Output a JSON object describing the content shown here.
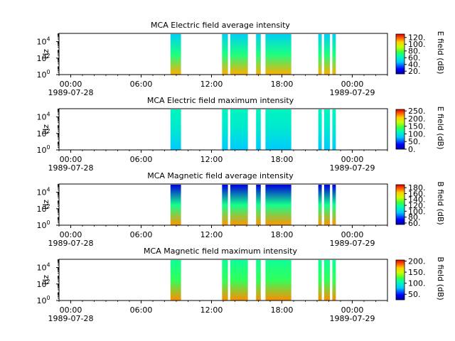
{
  "figure": {
    "time_axis": {
      "ticks": [
        {
          "time": "00:00",
          "date": "1989-07-28",
          "hour": 0
        },
        {
          "time": "06:00",
          "date": "",
          "hour": 6
        },
        {
          "time": "12:00",
          "date": "",
          "hour": 12
        },
        {
          "time": "18:00",
          "date": "",
          "hour": 18
        },
        {
          "time": "00:00",
          "date": "1989-07-29",
          "hour": 24
        }
      ],
      "range_hours": [
        -1,
        27
      ]
    },
    "segments_hours": [
      [
        8.5,
        9.4
      ],
      [
        12.9,
        13.4
      ],
      [
        13.6,
        15.1
      ],
      [
        15.8,
        16.2
      ],
      [
        16.6,
        18.8
      ],
      [
        21.1,
        21.4
      ],
      [
        21.6,
        22.1
      ],
      [
        22.3,
        22.6
      ]
    ]
  },
  "chart_data": [
    {
      "type": "heatmap",
      "title": "MCA  Electric field average intensity",
      "ylabel": "Hz",
      "yscale": "log",
      "yticks": [
        {
          "exp": 0,
          "label": "10",
          "sup": "0"
        },
        {
          "exp": 2,
          "label": "10",
          "sup": "2"
        },
        {
          "exp": 4,
          "label": "10",
          "sup": "4"
        }
      ],
      "colorbar": {
        "label": "E field (dB)",
        "range": [
          12,
          130
        ],
        "ticks": [
          20,
          40,
          60,
          80,
          100,
          120
        ],
        "tick_labels": [
          "20.",
          "40.",
          "60.",
          "80.",
          "100.",
          "120."
        ]
      },
      "typical_values_db": {
        "low_freq": 110,
        "mid_freq": 70,
        "high_freq": 50
      }
    },
    {
      "type": "heatmap",
      "title": "MCA  Electric field maximum intensity",
      "ylabel": "Hz",
      "yscale": "log",
      "yticks": [
        {
          "exp": 0,
          "label": "10",
          "sup": "0"
        },
        {
          "exp": 2,
          "label": "10",
          "sup": "2"
        },
        {
          "exp": 4,
          "label": "10",
          "sup": "4"
        }
      ],
      "colorbar": {
        "label": "E field (dB)",
        "range": [
          0,
          260
        ],
        "ticks": [
          0,
          50,
          100,
          150,
          200,
          250
        ],
        "tick_labels": [
          "0.",
          "50.",
          "100.",
          "150.",
          "200.",
          "250."
        ]
      },
      "typical_values_db": {
        "low_freq": 80,
        "mid_freq": 100,
        "high_freq": 110
      }
    },
    {
      "type": "heatmap",
      "title": "MCA  Magnetic field average intensity",
      "ylabel": "Hz",
      "yscale": "log",
      "yticks": [
        {
          "exp": 0,
          "label": "10",
          "sup": "0"
        },
        {
          "exp": 2,
          "label": "10",
          "sup": "2"
        },
        {
          "exp": 4,
          "label": "10",
          "sup": "4"
        }
      ],
      "colorbar": {
        "label": "B field (dB)",
        "range": [
          55,
          190
        ],
        "ticks": [
          60,
          80,
          100,
          120,
          140,
          160,
          180
        ],
        "tick_labels": [
          "60.",
          "80.",
          "100.",
          "120.",
          "140.",
          "160.",
          "180."
        ]
      },
      "typical_values_db": {
        "low_freq": 170,
        "mid_freq": 120,
        "high_freq": 65
      }
    },
    {
      "type": "heatmap",
      "title": "MCA  Magnetic field maximum intensity",
      "ylabel": "Hz",
      "yscale": "log",
      "yticks": [
        {
          "exp": 0,
          "label": "10",
          "sup": "0"
        },
        {
          "exp": 2,
          "label": "10",
          "sup": "2"
        },
        {
          "exp": 4,
          "label": "10",
          "sup": "4"
        }
      ],
      "colorbar": {
        "label": "B field (dB)",
        "range": [
          25,
          205
        ],
        "ticks": [
          50,
          100,
          150,
          200
        ],
        "tick_labels": [
          "50.",
          "100.",
          "150.",
          "200."
        ]
      },
      "typical_values_db": {
        "low_freq": 180,
        "mid_freq": 120,
        "high_freq": 110
      }
    }
  ]
}
